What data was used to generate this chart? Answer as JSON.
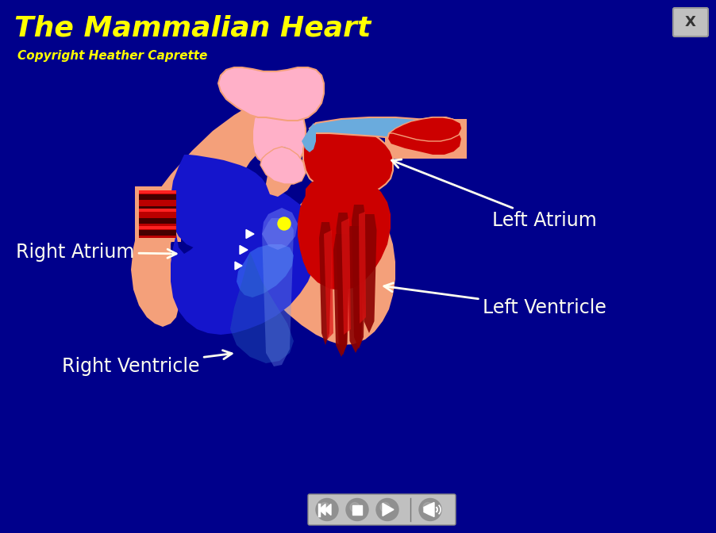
{
  "background_color": "#00008B",
  "title": "The Mammalian Heart",
  "title_color": "#FFFF00",
  "title_fontsize": 26,
  "copyright": "Copyright Heather Caprette",
  "copyright_color": "#FFFF00",
  "copyright_fontsize": 11,
  "labels": {
    "right_atrium": "Right Atrium",
    "right_ventricle": "Right Ventricle",
    "left_atrium": "Left Atrium",
    "left_ventricle": "Left Ventricle"
  },
  "label_color": "#FFFFF0",
  "label_fontsize": 17,
  "heart_skin_color": "#F4A07A",
  "right_blue_color": "#1515CC",
  "left_red_color": "#CC0000",
  "dark_red_color": "#8B0000",
  "pink_color": "#FFB0C8",
  "light_blue_color": "#6AABDD",
  "arrow_color": "#FFFFF0",
  "close_btn_color": "#C0C0C0",
  "close_btn_text": "X",
  "media_btn_color": "#909090",
  "nav_bar_color": "#C0C0C0",
  "outline_color": "#F4A07A"
}
